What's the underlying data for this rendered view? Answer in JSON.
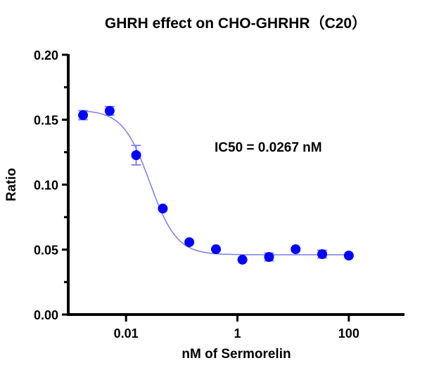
{
  "chart_data": {
    "type": "scatter",
    "title": "GHRH effect on CHO-GHRHR（C20）",
    "xlabel": "nM of Sermorelin",
    "ylabel": "Ratio",
    "xscale": "log",
    "xlim": [
      0.001,
      1000
    ],
    "ylim": [
      0,
      0.2
    ],
    "x_ticks": [
      0.01,
      1,
      100
    ],
    "x_tick_labels": [
      "0.01",
      "1",
      "100"
    ],
    "y_ticks": [
      0,
      0.05,
      0.1,
      0.15,
      0.2
    ],
    "y_tick_labels": [
      "0.00",
      "0.05",
      "0.10",
      "0.15",
      "0.20"
    ],
    "grid": false,
    "annotation": "IC50 = 0.0267 nM",
    "marker_color": "#0000ff",
    "curve_color": "#7b7bf0",
    "points": {
      "x": [
        0.00169,
        0.00508,
        0.0152,
        0.0457,
        0.137,
        0.412,
        1.23,
        3.7,
        11.1,
        33.3,
        100
      ],
      "y": [
        0.1535,
        0.1568,
        0.1227,
        0.0816,
        0.0557,
        0.0503,
        0.0422,
        0.0443,
        0.0503,
        0.0465,
        0.0454
      ],
      "error": [
        0.0035,
        0.0033,
        0.0075,
        0.001,
        0.001,
        0.001,
        0.001,
        0.003,
        0.001,
        0.003,
        0.001
      ]
    },
    "fit": {
      "model": "4PL",
      "top": 0.1575,
      "bottom": 0.046,
      "ic50": 0.0267,
      "hill": 1.8
    }
  }
}
